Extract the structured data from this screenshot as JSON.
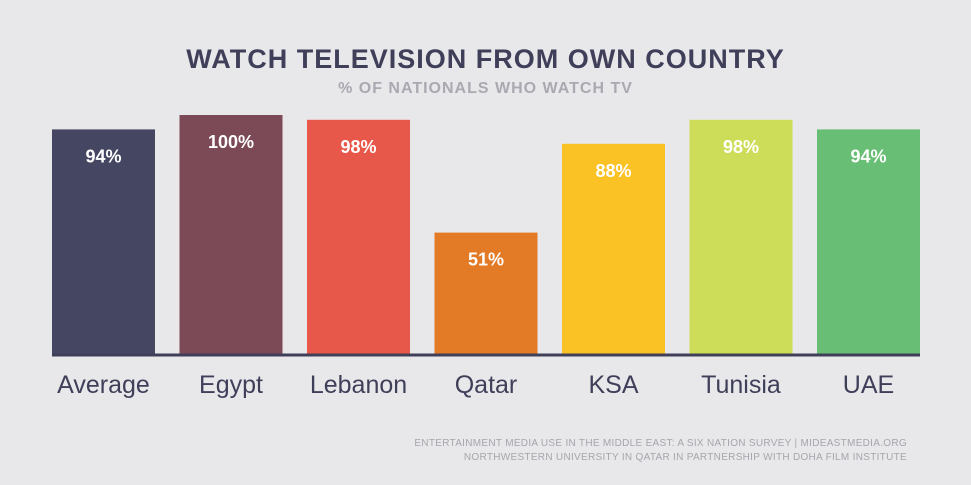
{
  "title": "WATCH TELEVISION FROM OWN COUNTRY",
  "subtitle": "% OF NATIONALS WHO WATCH TV",
  "footer": {
    "line1": "ENTERTAINMENT MEDIA USE IN THE MIDDLE EAST: A SIX NATION SURVEY | MIDEASTMEDIA.ORG",
    "line2": "NORTHWESTERN UNIVERSITY IN QATAR IN PARTNERSHIP WITH DOHA FILM INSTITUTE"
  },
  "chart_data": {
    "type": "bar",
    "title": "WATCH TELEVISION FROM OWN COUNTRY",
    "subtitle": "% OF NATIONALS WHO WATCH TV",
    "categories": [
      "Average",
      "Egypt",
      "Lebanon",
      "Qatar",
      "KSA",
      "Tunisia",
      "UAE"
    ],
    "values": [
      94,
      100,
      98,
      51,
      88,
      98,
      94
    ],
    "value_labels": [
      "94%",
      "100%",
      "98%",
      "51%",
      "88%",
      "98%",
      "94%"
    ],
    "colors": [
      "#454661",
      "#7c4956",
      "#e8584a",
      "#e37a25",
      "#fbc226",
      "#cedd59",
      "#68be74"
    ],
    "ylim": [
      0,
      100
    ],
    "grid": false,
    "legend": "none"
  }
}
